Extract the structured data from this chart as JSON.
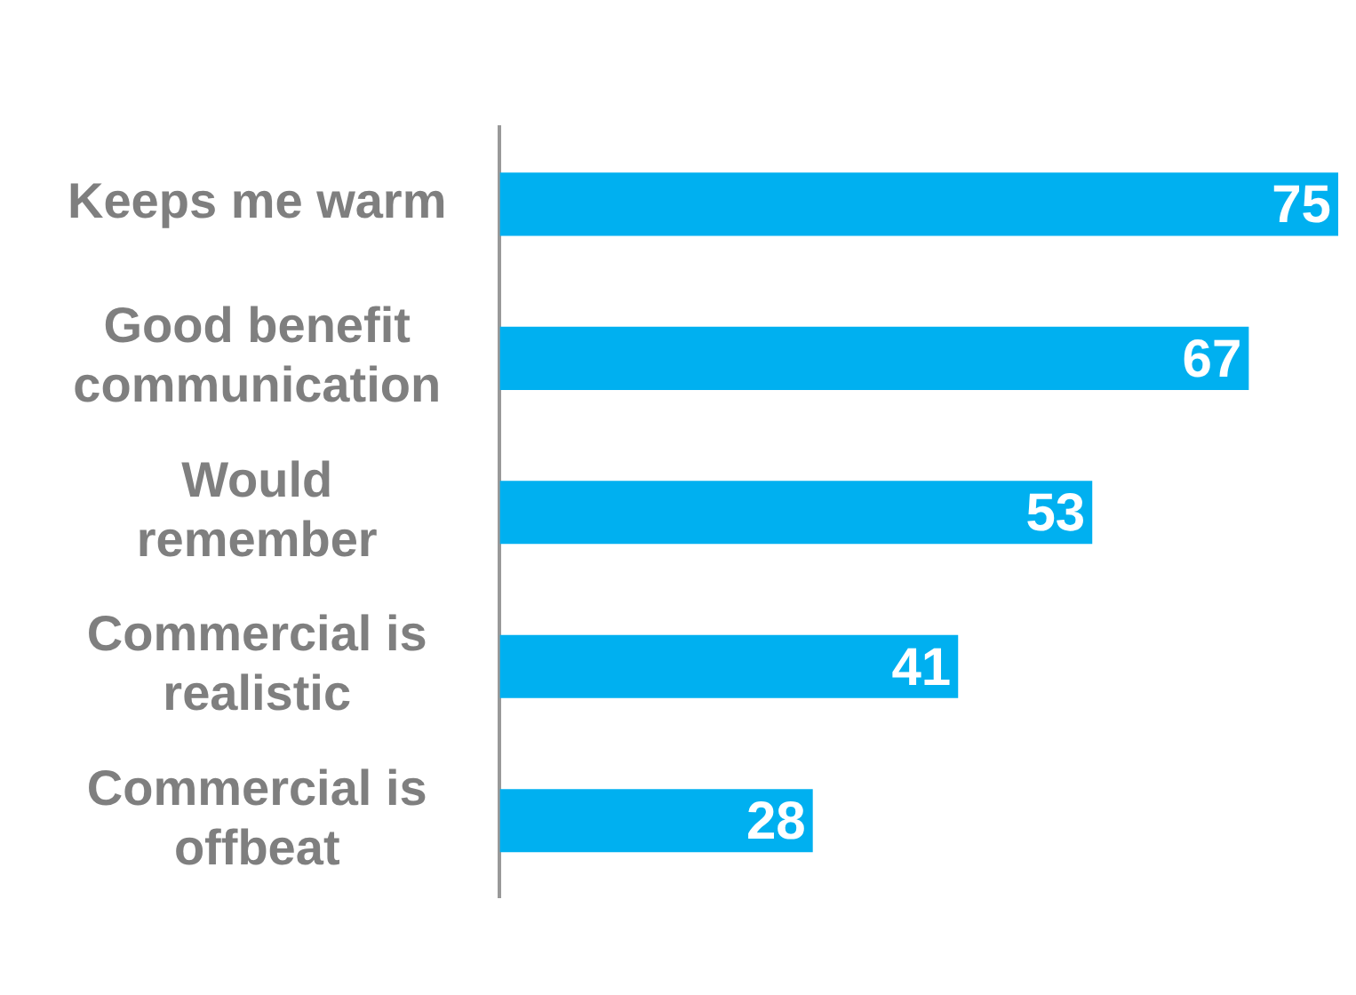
{
  "chart_data": {
    "type": "bar",
    "orientation": "horizontal",
    "categories": [
      "Keeps me warm",
      "Good benefit communication",
      "Would remember",
      "Commercial is realistic",
      "Commercial is offbeat"
    ],
    "values": [
      75,
      67,
      53,
      41,
      28
    ],
    "color": "#00b0f0",
    "data_labels": true,
    "tick_labels": "y",
    "legend": false
  }
}
